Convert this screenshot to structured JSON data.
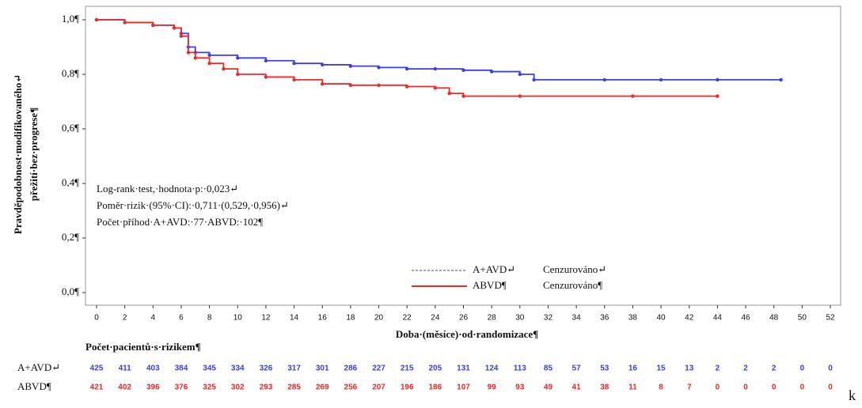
{
  "chart_data": {
    "type": "line",
    "step": true,
    "y_label_lines": [
      "Pravděpodobnost·modifikovaného↵",
      "přežití·bez·progrese¶"
    ],
    "x_label": "Doba·(měsíce)·od·randomizace¶",
    "annotations": [
      "Log-rank·test,·hodnota·p:·0,023↵",
      "Poměr·rizik·(95%·CI):·0,711·(0,529,·0,956)↵",
      "Počet·příhod·A+AVD:·77·ABVD:·102¶"
    ],
    "xlim": [
      0,
      52
    ],
    "xticks": [
      0,
      2,
      4,
      6,
      8,
      10,
      12,
      14,
      16,
      18,
      20,
      22,
      24,
      26,
      28,
      30,
      32,
      34,
      36,
      38,
      40,
      42,
      44,
      46,
      48,
      50,
      52
    ],
    "ylim": [
      0,
      1
    ],
    "yticks": [
      {
        "value": 0,
        "label": "0,0¶"
      },
      {
        "value": 0.2,
        "label": "0,2¶"
      },
      {
        "value": 0.4,
        "label": "0,4¶"
      },
      {
        "value": 0.6,
        "label": "0,6¶"
      },
      {
        "value": 0.8,
        "label": "0,8¶"
      },
      {
        "value": 1.0,
        "label": "1,0¶"
      }
    ],
    "series": [
      {
        "name": "A+AVD↵",
        "censor_label": "Cenzurováno↵",
        "color": "#3c3cf0",
        "x": [
          0,
          2,
          4,
          5.5,
          6,
          6.5,
          7,
          8,
          10,
          12,
          14,
          16,
          18,
          20,
          22,
          24,
          26,
          28,
          30,
          31,
          36,
          40,
          44,
          48.5
        ],
        "values": [
          1.0,
          0.99,
          0.98,
          0.97,
          0.95,
          0.9,
          0.88,
          0.87,
          0.86,
          0.85,
          0.84,
          0.835,
          0.83,
          0.825,
          0.82,
          0.82,
          0.815,
          0.81,
          0.8,
          0.78,
          0.78,
          0.78,
          0.78,
          0.78
        ]
      },
      {
        "name": "ABVD¶",
        "censor_label": "Cenzurováno¶",
        "color": "#f02828",
        "x": [
          0,
          2,
          4,
          5.5,
          6,
          6.5,
          7,
          8,
          9,
          10,
          12,
          14,
          16,
          18,
          20,
          22,
          24,
          25,
          26,
          30,
          38,
          44
        ],
        "values": [
          1.0,
          0.99,
          0.98,
          0.97,
          0.94,
          0.88,
          0.86,
          0.84,
          0.82,
          0.8,
          0.79,
          0.78,
          0.765,
          0.76,
          0.76,
          0.755,
          0.75,
          0.73,
          0.72,
          0.72,
          0.72,
          0.72
        ]
      }
    ],
    "risk_table": {
      "title": "Počet·pacientů·s·rizikem¶",
      "rows": [
        {
          "label": "A+AVD↵",
          "values": [
            425,
            411,
            403,
            384,
            345,
            334,
            326,
            317,
            301,
            286,
            227,
            215,
            205,
            131,
            124,
            113,
            85,
            57,
            53,
            16,
            15,
            13,
            2,
            2,
            2,
            0,
            0
          ]
        },
        {
          "label": "ABVD¶",
          "values": [
            421,
            402,
            396,
            376,
            325,
            302,
            293,
            285,
            269,
            256,
            207,
            196,
            186,
            107,
            99,
            93,
            49,
            41,
            38,
            11,
            8,
            7,
            0,
            0,
            0,
            0,
            0
          ]
        }
      ]
    },
    "fragment": "k"
  }
}
